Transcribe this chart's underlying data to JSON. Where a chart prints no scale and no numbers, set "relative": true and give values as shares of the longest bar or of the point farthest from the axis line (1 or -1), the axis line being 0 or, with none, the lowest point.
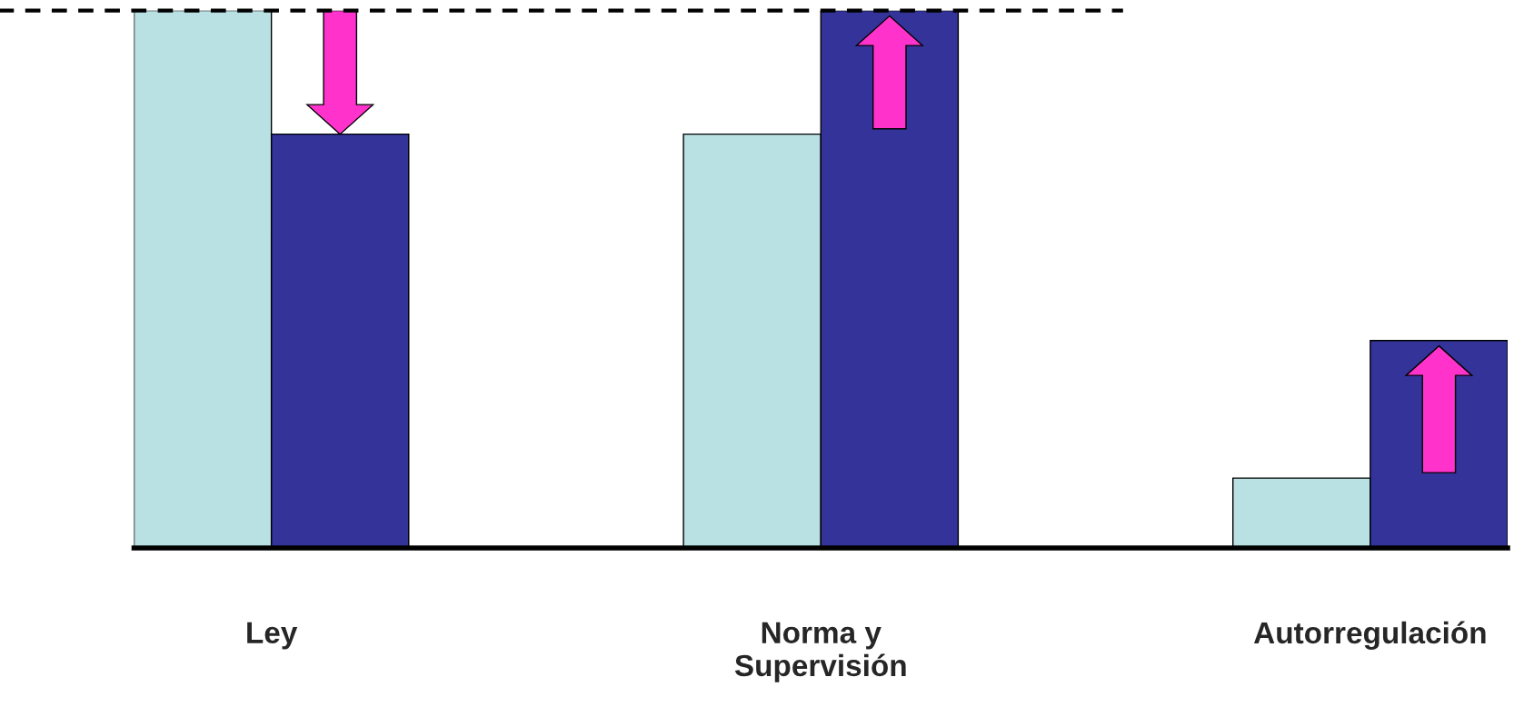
{
  "chart_data": {
    "type": "bar",
    "relative": true,
    "categories": [
      "Ley",
      "Norma y\nSupervisión",
      "Autorregulación"
    ],
    "series": [
      {
        "color": "#b9e0e3",
        "values": [
          1.0,
          0.77,
          0.13
        ]
      },
      {
        "color": "#333399",
        "values": [
          0.77,
          1.0,
          0.386
        ]
      }
    ],
    "ref_lines": [
      {
        "axis": "y",
        "value": 1,
        "color": "#000000",
        "line_style": "dashed"
      }
    ],
    "grid": false,
    "legend": false
  }
}
